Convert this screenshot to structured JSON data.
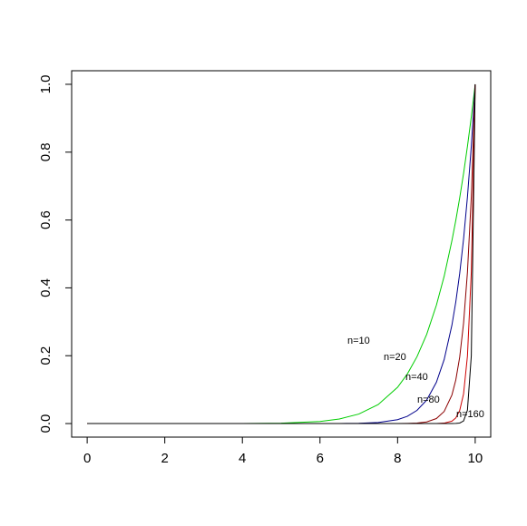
{
  "chart_data": {
    "type": "line",
    "x": [
      0,
      1,
      2,
      3,
      4,
      5,
      6,
      6.5,
      7,
      7.5,
      8,
      8.25,
      8.5,
      8.75,
      9,
      9.2,
      9.4,
      9.5,
      9.6,
      9.7,
      9.8,
      9.9,
      10
    ],
    "series": [
      {
        "name": "n=10",
        "color": "#00cd00",
        "values": [
          0,
          0,
          0,
          0,
          0.0001,
          0.001,
          0.006,
          0.0135,
          0.028,
          0.056,
          0.107,
          0.146,
          0.197,
          0.263,
          0.349,
          0.434,
          0.539,
          0.599,
          0.665,
          0.737,
          0.817,
          0.904,
          1
        ]
      },
      {
        "name": "n=20",
        "color": "#00008b",
        "values": [
          0,
          0,
          0,
          0,
          0,
          0,
          0,
          0.0002,
          0.0008,
          0.0032,
          0.0115,
          0.0213,
          0.0388,
          0.0692,
          0.1216,
          0.1887,
          0.2901,
          0.3585,
          0.442,
          0.5438,
          0.6676,
          0.8179,
          1
        ]
      },
      {
        "name": "n=40",
        "color": "#8b0000",
        "values": [
          0,
          0,
          0,
          0,
          0,
          0,
          0,
          0,
          0,
          0,
          0.0001,
          0.0005,
          0.0015,
          0.0048,
          0.0148,
          0.0356,
          0.0842,
          0.1285,
          0.1954,
          0.2957,
          0.4457,
          0.669,
          1
        ]
      },
      {
        "name": "n=80",
        "color": "#cd0000",
        "values": [
          0,
          0,
          0,
          0,
          0,
          0,
          0,
          0,
          0,
          0,
          0,
          0,
          0,
          0,
          0.0002,
          0.0013,
          0.0071,
          0.0165,
          0.0382,
          0.0874,
          0.1986,
          0.4475,
          1
        ]
      },
      {
        "name": "n=160",
        "color": "#000000",
        "values": [
          0,
          0,
          0,
          0,
          0,
          0,
          0,
          0,
          0,
          0,
          0,
          0,
          0,
          0,
          0,
          0,
          0.0001,
          0.0003,
          0.0015,
          0.0076,
          0.0394,
          0.2003,
          1
        ]
      }
    ],
    "xlim": [
      -0.4,
      10.4
    ],
    "ylim": [
      -0.04,
      1.04
    ],
    "xticks": [
      0,
      2,
      4,
      6,
      8,
      10
    ],
    "yticks": [
      {
        "value": 0,
        "label": "0.0"
      },
      0.2,
      0.4,
      0.6,
      0.8,
      {
        "value": 1,
        "label": "1.0"
      }
    ]
  }
}
